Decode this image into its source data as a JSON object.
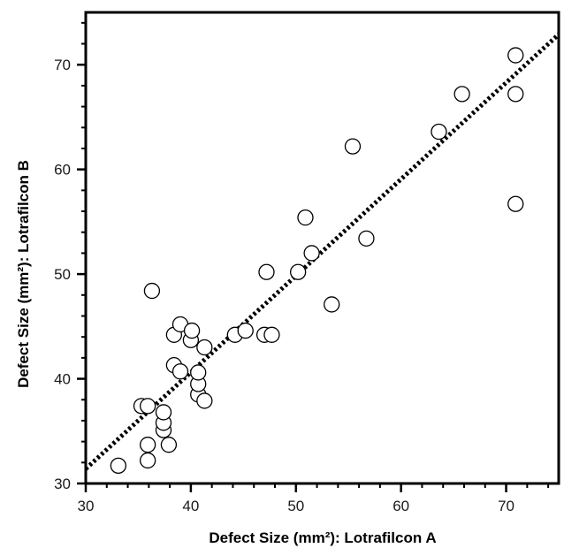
{
  "chart_data": {
    "type": "scatter",
    "title": "",
    "xlabel": "Defect Size (mm²): Lotrafilcon A",
    "ylabel": "Defect Size (mm²): Lotrafilcon B",
    "xlim": [
      30,
      75
    ],
    "ylim": [
      30,
      75
    ],
    "xticks": [
      30,
      40,
      50,
      60,
      70
    ],
    "yticks": [
      30,
      40,
      50,
      60,
      70
    ],
    "minor_tick_step": 2,
    "grid": false,
    "legend": "none",
    "series": [
      {
        "marker": "open-circle",
        "points": [
          [
            33.1,
            31.7
          ],
          [
            35.9,
            32.2
          ],
          [
            35.9,
            33.7
          ],
          [
            37.4,
            35.1
          ],
          [
            37.4,
            35.8
          ],
          [
            37.9,
            33.7
          ],
          [
            37.4,
            36.8
          ],
          [
            35.3,
            37.4
          ],
          [
            35.9,
            37.4
          ],
          [
            36.3,
            48.4
          ],
          [
            38.4,
            41.3
          ],
          [
            38.4,
            44.2
          ],
          [
            39.0,
            40.7
          ],
          [
            39.0,
            45.2
          ],
          [
            40.0,
            43.7
          ],
          [
            40.1,
            44.6
          ],
          [
            40.7,
            38.5
          ],
          [
            40.7,
            39.5
          ],
          [
            40.7,
            40.6
          ],
          [
            41.3,
            37.9
          ],
          [
            41.3,
            43.0
          ],
          [
            44.2,
            44.2
          ],
          [
            45.2,
            44.6
          ],
          [
            47.0,
            44.2
          ],
          [
            47.7,
            44.2
          ],
          [
            47.2,
            50.2
          ],
          [
            50.2,
            50.2
          ],
          [
            50.9,
            55.4
          ],
          [
            51.5,
            52.0
          ],
          [
            53.4,
            47.1
          ],
          [
            55.4,
            62.2
          ],
          [
            56.7,
            53.4
          ],
          [
            63.6,
            63.6
          ],
          [
            65.8,
            67.2
          ],
          [
            70.9,
            70.9
          ],
          [
            70.9,
            67.2
          ],
          [
            70.9,
            56.7
          ]
        ]
      }
    ],
    "fit_line": {
      "style": "dotted",
      "x": [
        30,
        75
      ],
      "y": [
        31.4,
        72.9
      ]
    }
  }
}
